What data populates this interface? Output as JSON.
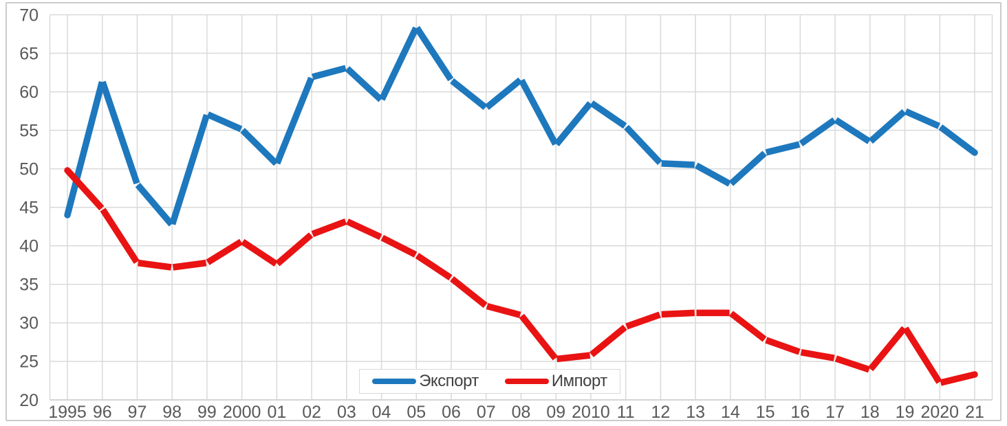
{
  "chart_data": {
    "type": "line",
    "title": "",
    "xlabel": "",
    "ylabel": "",
    "x": [
      "1995",
      "96",
      "97",
      "98",
      "99",
      "2000",
      "01",
      "02",
      "03",
      "04",
      "05",
      "06",
      "07",
      "08",
      "09",
      "2010",
      "11",
      "12",
      "13",
      "14",
      "15",
      "16",
      "17",
      "18",
      "19",
      "2020",
      "21"
    ],
    "series": [
      {
        "name": "Экспорт",
        "key": "export",
        "color": "#1e78bd",
        "values": [
          44.0,
          61.4,
          48.0,
          42.7,
          57.1,
          55.1,
          50.6,
          61.9,
          63.1,
          58.9,
          68.4,
          61.5,
          57.9,
          61.6,
          53.1,
          58.6,
          55.5,
          50.7,
          50.5,
          48.0,
          52.1,
          53.2,
          56.4,
          53.5,
          57.5,
          55.5,
          52.1
        ]
      },
      {
        "name": "Импорт",
        "key": "import",
        "color": "#e91313",
        "values": [
          49.8,
          44.8,
          37.8,
          37.2,
          37.8,
          40.6,
          37.6,
          41.5,
          43.2,
          41.1,
          38.8,
          35.8,
          32.2,
          31.0,
          25.3,
          25.8,
          29.5,
          31.1,
          31.3,
          31.3,
          27.8,
          26.2,
          25.4,
          23.9,
          29.4,
          22.2,
          23.3
        ]
      }
    ],
    "ylim": [
      20,
      70
    ],
    "yticks": [
      20,
      25,
      30,
      35,
      40,
      45,
      50,
      55,
      60,
      65,
      70
    ],
    "grid": "both",
    "legend_position": "inside-bottom-center"
  },
  "styles": {
    "grid_color": "#d9d9d9",
    "axis_line_color": "#c6c6c6",
    "axis_text_color": "#595959",
    "legend_text_color": "#404040",
    "border_color": "#cbcbcb",
    "background": "#ffffff",
    "line_width": 9.5
  }
}
